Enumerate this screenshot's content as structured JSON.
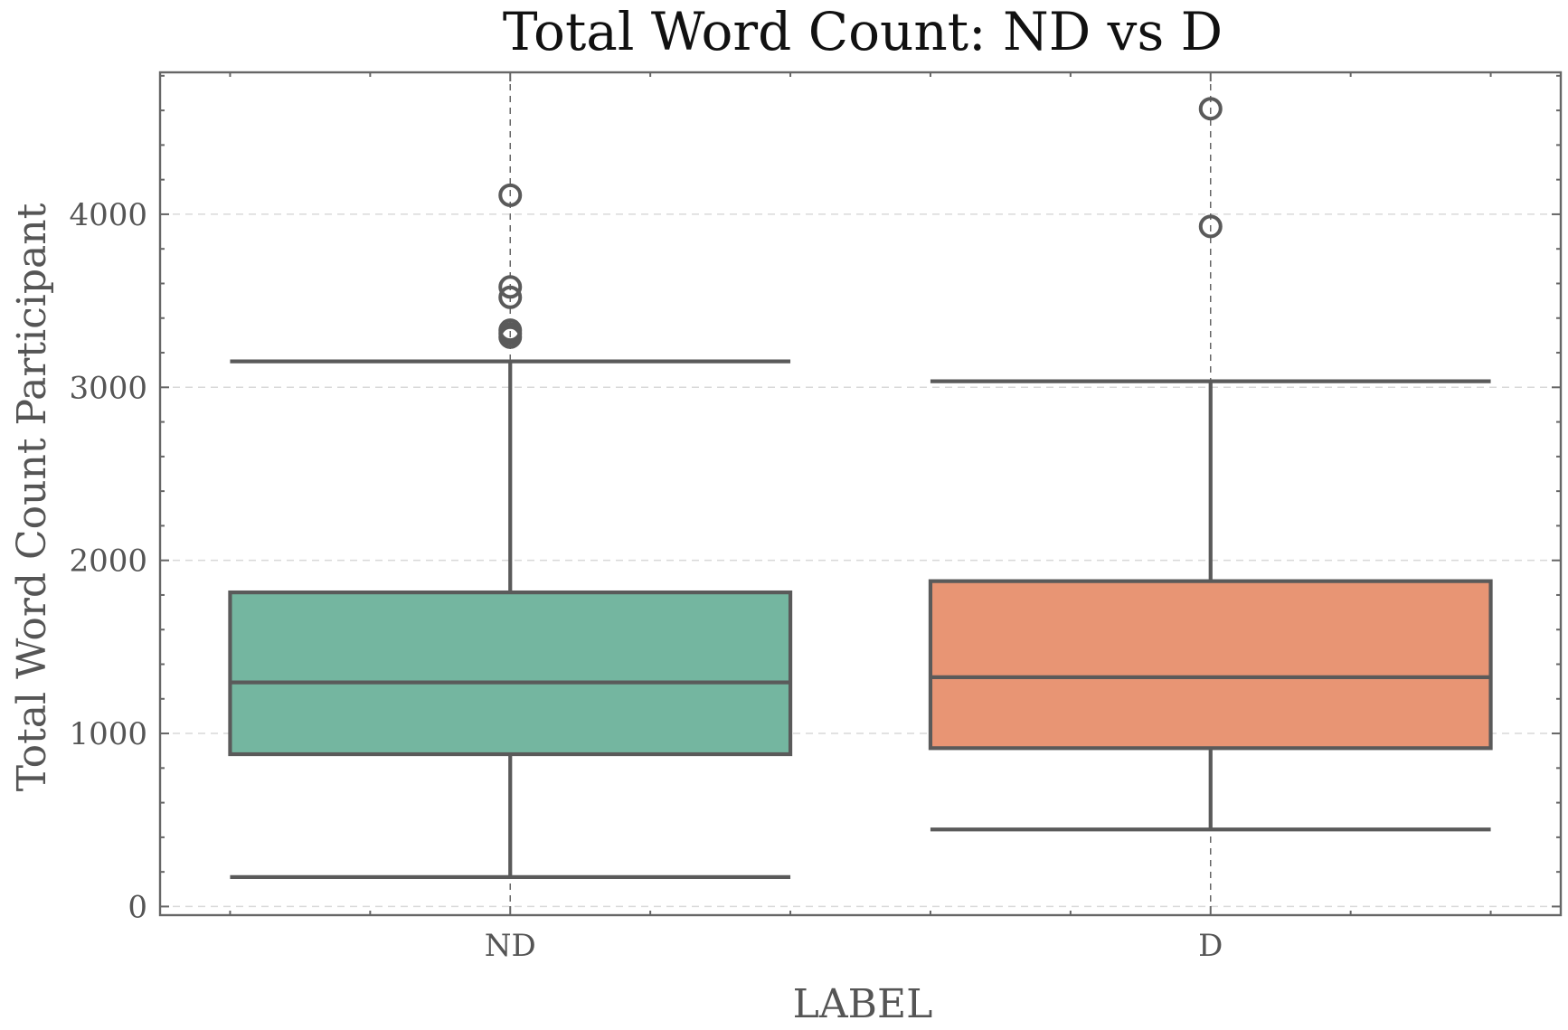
{
  "chart_data": {
    "type": "box",
    "title": "Total Word Count: ND vs D",
    "xlabel": "LABEL",
    "ylabel": "Total Word Count Participant",
    "ylim": [
      -50,
      4820
    ],
    "yticks": [
      0,
      1000,
      2000,
      3000,
      4000
    ],
    "ytick_labels": [
      "0",
      "1000",
      "2000",
      "3000",
      "4000"
    ],
    "grid": true,
    "categories": [
      "ND",
      "D"
    ],
    "boxes": [
      {
        "category": "ND",
        "color": "#74b6a0",
        "whislo": 170,
        "q1": 880,
        "median": 1295,
        "q3": 1815,
        "whishi": 3150,
        "fliers": [
          3290,
          3310,
          3330,
          3520,
          3580,
          4110
        ]
      },
      {
        "category": "D",
        "color": "#e89574",
        "whislo": 445,
        "q1": 915,
        "median": 1325,
        "q3": 1880,
        "whishi": 3035,
        "fliers": [
          3930,
          4610
        ]
      }
    ]
  }
}
